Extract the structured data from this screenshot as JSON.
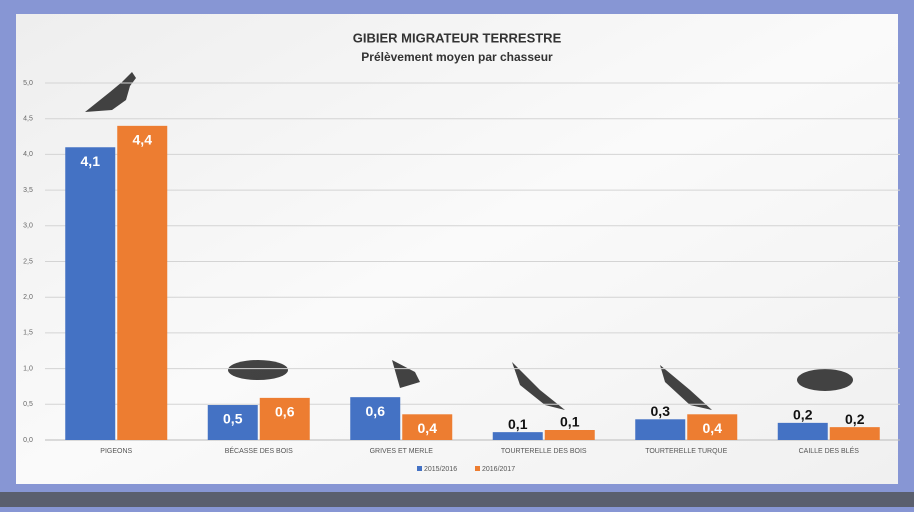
{
  "chart_data": {
    "type": "bar",
    "title": "GIBIER MIGRATEUR TERRESTRE",
    "subtitle": "Prélèvement moyen par chasseur",
    "categories": [
      "PIGEONS",
      "BÉCASSE DES BOIS",
      "GRIVES ET MERLE",
      "TOURTERELLE DES BOIS",
      "TOURTERELLE TURQUE",
      "CAILLE DES BLÉS"
    ],
    "series": [
      {
        "name": "2015/2016",
        "color": "#4472c4",
        "values": [
          4.1,
          0.49,
          0.6,
          0.11,
          0.29,
          0.24
        ],
        "value_labels": [
          "4,1",
          "0,5",
          "0,6",
          "0,1",
          "0,3",
          "0,2"
        ]
      },
      {
        "name": "2016/2017",
        "color": "#ed7d31",
        "values": [
          4.4,
          0.59,
          0.36,
          0.14,
          0.36,
          0.18
        ],
        "value_labels": [
          "4,4",
          "0,6",
          "0,4",
          "0,1",
          "0,4",
          "0,2"
        ]
      }
    ],
    "ylim": [
      0,
      5
    ],
    "yticks": [
      {
        "value": 0,
        "label": "0,0"
      },
      {
        "value": 0.5,
        "label": "0,5"
      },
      {
        "value": 1,
        "label": "1,0"
      },
      {
        "value": 1.5,
        "label": "1,5"
      },
      {
        "value": 2,
        "label": "2,0"
      },
      {
        "value": 2.5,
        "label": "2,5"
      },
      {
        "value": 3,
        "label": "3,0"
      },
      {
        "value": 3.5,
        "label": "3,5"
      },
      {
        "value": 4,
        "label": "4,0"
      },
      {
        "value": 4.5,
        "label": "4,5"
      },
      {
        "value": 5,
        "label": "5,0"
      }
    ],
    "grid": true
  }
}
